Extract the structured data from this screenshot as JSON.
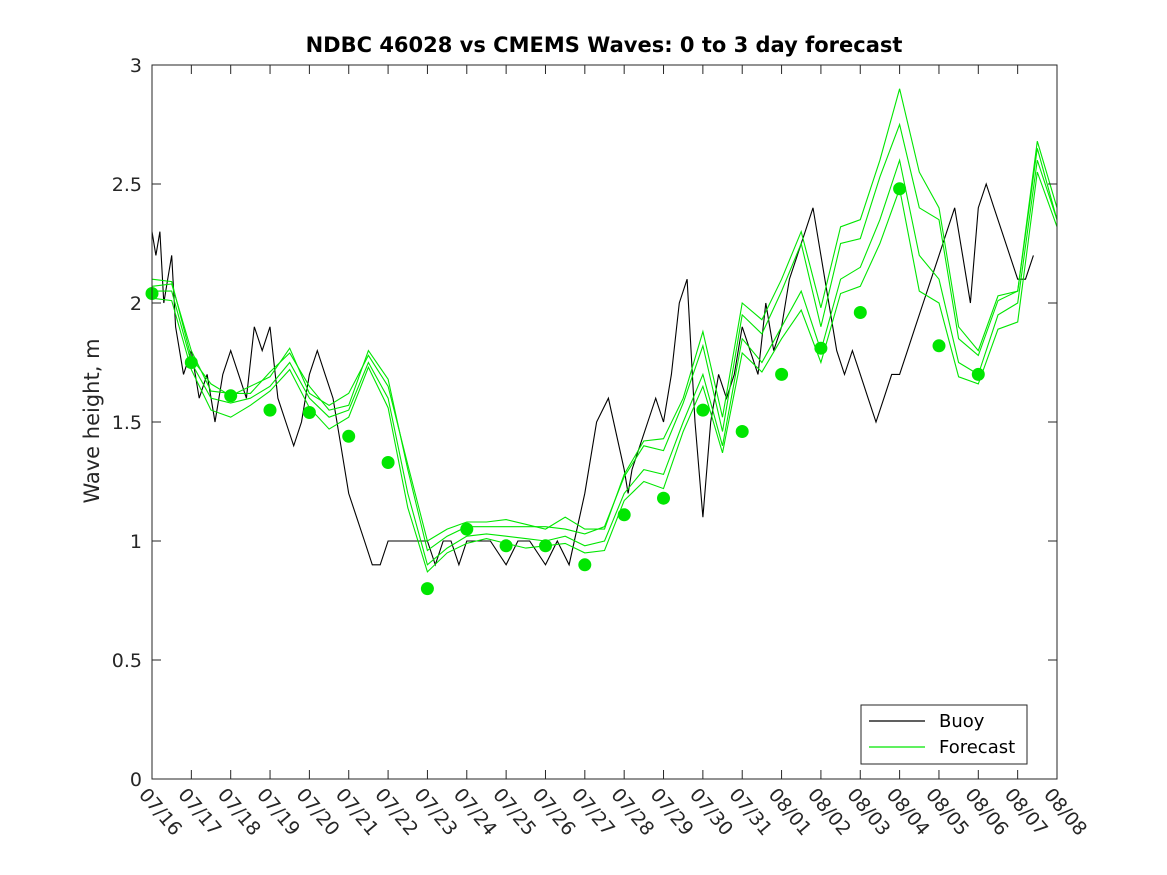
{
  "chart_data": {
    "type": "line",
    "title": "NDBC 46028 vs CMEMS Waves: 0 to 3 day forecast",
    "xlabel": "",
    "ylabel": "Wave height, m",
    "ylim": [
      0,
      3
    ],
    "yticks": [
      "0",
      "0.5",
      "1",
      "1.5",
      "2",
      "2.5",
      "3"
    ],
    "xticks": [
      "07/16",
      "07/17",
      "07/18",
      "07/19",
      "07/20",
      "07/21",
      "07/22",
      "07/23",
      "07/24",
      "07/25",
      "07/26",
      "07/27",
      "07/28",
      "07/29",
      "07/30",
      "07/31",
      "08/01",
      "08/02",
      "08/03",
      "08/04",
      "08/05",
      "08/06",
      "08/07",
      "08/08"
    ],
    "xlim_days": [
      0,
      23
    ],
    "grid": false,
    "legend": {
      "placement": "bottom-right",
      "entries": [
        "Buoy",
        "Forecast"
      ]
    },
    "colors": {
      "buoy": "#000000",
      "forecast": "#00e600",
      "markers": "#00e600"
    },
    "series": [
      {
        "name": "Buoy",
        "x": [
          0,
          0.1,
          0.2,
          0.3,
          0.4,
          0.5,
          0.6,
          0.8,
          1.0,
          1.2,
          1.4,
          1.6,
          1.8,
          2.0,
          2.2,
          2.4,
          2.6,
          2.8,
          3.0,
          3.2,
          3.4,
          3.6,
          3.8,
          4.0,
          4.2,
          4.4,
          4.6,
          4.8,
          5.0,
          5.2,
          5.4,
          5.6,
          5.8,
          6.0,
          6.2,
          6.4,
          6.6,
          6.8,
          7.0,
          7.2,
          7.4,
          7.6,
          7.8,
          8.0,
          8.3,
          8.6,
          9.0,
          9.3,
          9.6,
          10.0,
          10.3,
          10.6,
          11.0,
          11.3,
          11.6,
          12.0,
          12.1,
          12.2,
          12.4,
          12.6,
          12.8,
          13.0,
          13.2,
          13.4,
          13.6,
          13.8,
          14.0,
          14.2,
          14.4,
          14.6,
          14.8,
          15.0,
          15.2,
          15.4,
          15.6,
          15.8,
          16.0,
          16.2,
          16.4,
          16.6,
          16.8,
          17.0,
          17.2,
          17.4,
          17.6,
          17.8,
          18.0,
          18.2,
          18.4,
          18.6,
          18.8,
          19.0,
          19.2,
          19.4,
          19.6,
          19.8,
          20.0,
          20.2,
          20.4,
          20.6,
          20.8,
          21.0,
          21.2,
          21.4,
          21.6,
          21.8,
          22.0,
          22.2,
          22.4
        ],
        "values": [
          2.3,
          2.2,
          2.3,
          2.0,
          2.1,
          2.2,
          1.9,
          1.7,
          1.8,
          1.6,
          1.7,
          1.5,
          1.7,
          1.8,
          1.7,
          1.6,
          1.9,
          1.8,
          1.9,
          1.6,
          1.5,
          1.4,
          1.5,
          1.7,
          1.8,
          1.7,
          1.6,
          1.4,
          1.2,
          1.1,
          1.0,
          0.9,
          0.9,
          1.0,
          1.0,
          1.0,
          1.0,
          1.0,
          1.0,
          0.9,
          1.0,
          1.0,
          0.9,
          1.0,
          1.0,
          1.0,
          0.9,
          1.0,
          1.0,
          0.9,
          1.0,
          0.9,
          1.2,
          1.5,
          1.6,
          1.3,
          1.2,
          1.3,
          1.4,
          1.5,
          1.6,
          1.5,
          1.7,
          2.0,
          2.1,
          1.5,
          1.1,
          1.5,
          1.7,
          1.6,
          1.7,
          1.9,
          1.8,
          1.7,
          2.0,
          1.8,
          1.9,
          2.1,
          2.2,
          2.3,
          2.4,
          2.2,
          2.0,
          1.8,
          1.7,
          1.8,
          1.7,
          1.6,
          1.5,
          1.6,
          1.7,
          1.7,
          1.8,
          1.9,
          2.0,
          2.1,
          2.2,
          2.3,
          2.4,
          2.2,
          2.0,
          2.4,
          2.5,
          2.4,
          2.3,
          2.2,
          2.1,
          2.1,
          2.2
        ]
      },
      {
        "name": "Forecast",
        "x": [
          0,
          0.5,
          1.0,
          1.5,
          2.0,
          2.5,
          3.0,
          3.5,
          4.0,
          4.5,
          5.0,
          5.5,
          6.0,
          6.5,
          7.0,
          7.5,
          8.0,
          8.5,
          9.0,
          9.5,
          10.0,
          10.5,
          11.0,
          11.5,
          12.0,
          12.5,
          13.0,
          13.5,
          14.0,
          14.5,
          15.0,
          15.5,
          16.0,
          16.5,
          17.0,
          17.5,
          18.0,
          18.5,
          19.0,
          19.5,
          20.0,
          20.5,
          21.0,
          21.5,
          22.0,
          22.5,
          23.0
        ],
        "values": [
          2.05,
          2.05,
          1.75,
          1.6,
          1.58,
          1.6,
          1.65,
          1.75,
          1.6,
          1.52,
          1.55,
          1.75,
          1.6,
          1.2,
          0.9,
          0.97,
          1.02,
          1.03,
          1.02,
          1.01,
          1.0,
          1.02,
          0.98,
          1.0,
          1.2,
          1.3,
          1.28,
          1.5,
          1.7,
          1.4,
          1.85,
          1.75,
          1.9,
          2.05,
          1.8,
          2.1,
          2.15,
          2.35,
          2.6,
          2.2,
          2.1,
          1.75,
          1.7,
          1.95,
          2.0,
          2.6,
          2.35
        ]
      }
    ],
    "forecast_variants": [
      [
        0.02,
        0.03,
        0.05,
        0.03,
        0.04,
        0.02,
        0.06,
        0.04,
        0.05,
        0.03,
        0.02,
        0.05,
        0.08,
        0.1,
        0.06,
        0.05,
        0.04,
        0.03,
        0.04,
        0.05,
        0.06,
        0.03,
        0.05,
        0.06,
        0.07,
        0.1,
        0.1,
        0.08,
        0.12,
        0.06,
        0.1,
        0.12,
        0.15,
        0.2,
        0.1,
        0.15,
        0.12,
        0.18,
        0.15,
        0.2,
        0.25,
        0.1,
        0.08,
        0.06,
        0.05,
        0.05,
        0.0
      ],
      [
        -0.03,
        -0.04,
        -0.03,
        -0.05,
        -0.06,
        -0.03,
        -0.02,
        -0.03,
        -0.04,
        -0.05,
        -0.03,
        -0.02,
        -0.04,
        -0.06,
        -0.03,
        -0.02,
        -0.03,
        -0.02,
        -0.03,
        -0.04,
        -0.02,
        -0.03,
        -0.03,
        -0.04,
        -0.03,
        -0.05,
        -0.06,
        -0.04,
        -0.05,
        -0.03,
        -0.06,
        -0.04,
        -0.05,
        -0.08,
        -0.05,
        -0.06,
        -0.08,
        -0.1,
        -0.12,
        -0.15,
        -0.1,
        -0.06,
        -0.04,
        -0.06,
        -0.08,
        -0.05,
        -0.03
      ],
      [
        0.05,
        0.04,
        0.02,
        0.06,
        0.03,
        0.05,
        0.04,
        0.06,
        0.02,
        0.05,
        0.07,
        0.03,
        0.05,
        0.12,
        0.1,
        0.08,
        0.06,
        0.05,
        0.07,
        0.06,
        0.05,
        0.08,
        0.07,
        0.05,
        0.08,
        0.12,
        0.15,
        0.1,
        0.18,
        0.12,
        0.15,
        0.18,
        0.2,
        0.25,
        0.18,
        0.22,
        0.2,
        0.25,
        0.3,
        0.35,
        0.3,
        0.15,
        0.1,
        0.08,
        0.05,
        0.08,
        0.05
      ]
    ],
    "markers": {
      "x": [
        0,
        1,
        2,
        3,
        4,
        5,
        6,
        7,
        8,
        9,
        10,
        11,
        12,
        13,
        14,
        15,
        16,
        17,
        18,
        19,
        20,
        21
      ],
      "values": [
        2.04,
        1.75,
        1.61,
        1.55,
        1.54,
        1.44,
        1.33,
        0.8,
        1.05,
        0.98,
        0.98,
        0.9,
        1.11,
        1.18,
        1.55,
        1.46,
        1.7,
        1.81,
        1.96,
        2.48,
        1.82,
        1.7
      ]
    }
  }
}
